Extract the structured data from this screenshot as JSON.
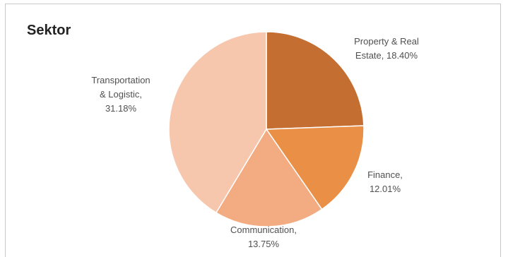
{
  "chart_data": {
    "type": "pie",
    "title": "Sektor",
    "slices": [
      {
        "label_lines": [
          "Property & Real",
          "Estate, 18.40%"
        ],
        "name": "Property & Real Estate",
        "value": 18.4,
        "color": "#c46e31"
      },
      {
        "label_lines": [
          "Finance,",
          "12.01%"
        ],
        "name": "Finance",
        "value": 12.01,
        "color": "#ea8f46"
      },
      {
        "label_lines": [
          "Communication,",
          "13.75%"
        ],
        "name": "Communication",
        "value": 13.75,
        "color": "#f3ac81"
      },
      {
        "label_lines": [
          "Transportation",
          "& Logistic,",
          "31.18%"
        ],
        "name": "Transportation & Logistic",
        "value": 31.18,
        "color": "#f7c7ad"
      }
    ],
    "legend": "none"
  }
}
